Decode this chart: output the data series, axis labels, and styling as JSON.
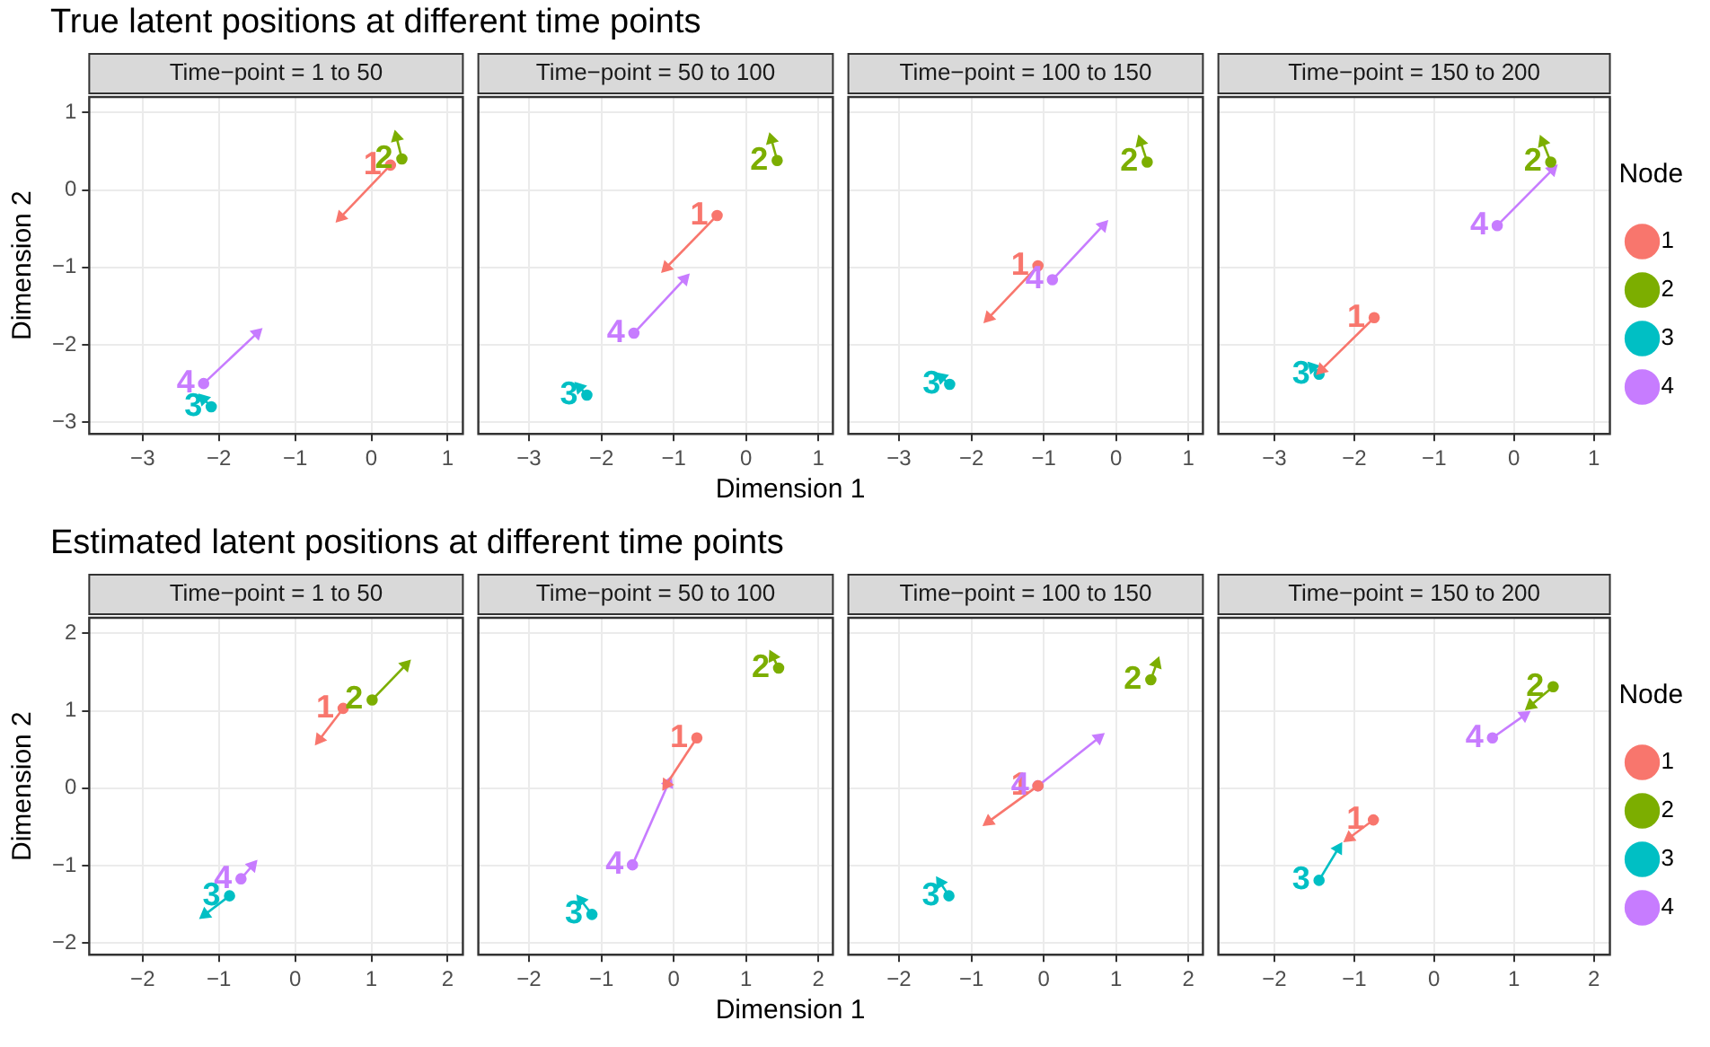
{
  "chart_data": [
    {
      "type": "line",
      "title": "True latent positions at different time points",
      "subtitle": "Time−point = 1 to 50",
      "ylabel": "Dimension 2",
      "xlim": [
        -3.7,
        1.2
      ],
      "ylim": [
        -3.15,
        1.2
      ],
      "xticks": [
        -3,
        -2,
        -1,
        0,
        1
      ],
      "yticks": [
        -3,
        -2,
        -1,
        0,
        1
      ],
      "grid": true,
      "marker": "circle",
      "series": [
        {
          "name": "1",
          "color": "#f8766d",
          "x": [
            0.25,
            -0.4
          ],
          "values": [
            0.32,
            -0.35
          ]
        },
        {
          "name": "2",
          "color": "#7cae00",
          "x": [
            0.4,
            0.33
          ],
          "values": [
            0.4,
            0.68
          ]
        },
        {
          "name": "3",
          "color": "#00bfc4",
          "x": [
            -2.1,
            -2.2
          ],
          "values": [
            -2.8,
            -2.7
          ]
        },
        {
          "name": "4",
          "color": "#c77cff",
          "x": [
            -2.2,
            -1.5
          ],
          "values": [
            -2.5,
            -1.85
          ]
        }
      ]
    },
    {
      "type": "line",
      "subtitle": "Time−point = 50 to 100",
      "xlabel": "Dimension 1",
      "xlim": [
        -3.7,
        1.2
      ],
      "ylim": [
        -3.15,
        1.2
      ],
      "xticks": [
        -3,
        -2,
        -1,
        0,
        1
      ],
      "yticks": [
        -3,
        -2,
        -1,
        0,
        1
      ],
      "tick_labels": "x",
      "grid": true,
      "marker": "circle",
      "series": [
        {
          "name": "1",
          "color": "#f8766d",
          "x": [
            -0.4,
            -1.1
          ],
          "values": [
            -0.33,
            -1.0
          ]
        },
        {
          "name": "2",
          "color": "#7cae00",
          "x": [
            0.43,
            0.35
          ],
          "values": [
            0.38,
            0.65
          ]
        },
        {
          "name": "3",
          "color": "#00bfc4",
          "x": [
            -2.2,
            -2.3
          ],
          "values": [
            -2.65,
            -2.55
          ]
        },
        {
          "name": "4",
          "color": "#c77cff",
          "x": [
            -1.55,
            -0.85
          ],
          "values": [
            -1.85,
            -1.15
          ]
        }
      ]
    },
    {
      "type": "line",
      "subtitle": "Time−point = 100 to 150",
      "xlim": [
        -3.7,
        1.2
      ],
      "ylim": [
        -3.15,
        1.2
      ],
      "xticks": [
        -3,
        -2,
        -1,
        0,
        1
      ],
      "yticks": [
        -3,
        -2,
        -1,
        0,
        1
      ],
      "tick_labels": "x",
      "grid": true,
      "marker": "circle",
      "series": [
        {
          "name": "1",
          "color": "#f8766d",
          "x": [
            -1.08,
            -1.76
          ],
          "values": [
            -0.98,
            -1.65
          ]
        },
        {
          "name": "2",
          "color": "#7cae00",
          "x": [
            0.43,
            0.34
          ],
          "values": [
            0.36,
            0.62
          ]
        },
        {
          "name": "3",
          "color": "#00bfc4",
          "x": [
            -2.3,
            -2.41
          ],
          "values": [
            -2.51,
            -2.42
          ]
        },
        {
          "name": "4",
          "color": "#c77cff",
          "x": [
            -0.88,
            -0.18
          ],
          "values": [
            -1.16,
            -0.46
          ]
        }
      ]
    },
    {
      "type": "line",
      "subtitle": "Time−point = 150 to 200",
      "xlim": [
        -3.7,
        1.2
      ],
      "ylim": [
        -3.15,
        1.2
      ],
      "xticks": [
        -3,
        -2,
        -1,
        0,
        1
      ],
      "yticks": [
        -3,
        -2,
        -1,
        0,
        1
      ],
      "tick_labels": "x",
      "grid": true,
      "marker": "circle",
      "legend": "right",
      "legend_title": "Node",
      "series": [
        {
          "name": "1",
          "color": "#f8766d",
          "x": [
            -1.75,
            -2.41
          ],
          "values": [
            -1.65,
            -2.32
          ]
        },
        {
          "name": "2",
          "color": "#7cae00",
          "x": [
            0.46,
            0.36
          ],
          "values": [
            0.36,
            0.62
          ]
        },
        {
          "name": "3",
          "color": "#00bfc4",
          "x": [
            -2.44,
            -2.52
          ],
          "values": [
            -2.38,
            -2.29
          ]
        },
        {
          "name": "4",
          "color": "#c77cff",
          "x": [
            -0.21,
            0.48
          ],
          "values": [
            -0.46,
            0.26
          ]
        }
      ]
    },
    {
      "type": "line",
      "title": "Estimated latent positions at different time points",
      "subtitle": "Time−point = 1 to 50",
      "ylabel": "Dimension 2",
      "xlim": [
        -2.7,
        2.2
      ],
      "ylim": [
        -2.15,
        2.2
      ],
      "xticks": [
        -2,
        -1,
        0,
        1,
        2
      ],
      "yticks": [
        -2,
        -1,
        0,
        1,
        2
      ],
      "grid": true,
      "marker": "circle",
      "series": [
        {
          "name": "1",
          "color": "#f8766d",
          "x": [
            0.63,
            0.32
          ],
          "values": [
            1.03,
            0.63
          ]
        },
        {
          "name": "2",
          "color": "#7cae00",
          "x": [
            1.01,
            1.45
          ],
          "values": [
            1.14,
            1.59
          ]
        },
        {
          "name": "3",
          "color": "#00bfc4",
          "x": [
            -0.86,
            -1.18
          ],
          "values": [
            -1.39,
            -1.63
          ]
        },
        {
          "name": "4",
          "color": "#c77cff",
          "x": [
            -0.71,
            -0.56
          ],
          "values": [
            -1.17,
            -1.0
          ]
        }
      ]
    },
    {
      "type": "line",
      "subtitle": "Time−point = 50 to 100",
      "xlabel": "Dimension 1",
      "xlim": [
        -2.7,
        2.2
      ],
      "ylim": [
        -2.15,
        2.2
      ],
      "xticks": [
        -2,
        -1,
        0,
        1,
        2
      ],
      "yticks": [
        -2,
        -1,
        0,
        1,
        2
      ],
      "tick_labels": "x",
      "grid": true,
      "marker": "circle",
      "series": [
        {
          "name": "1",
          "color": "#f8766d",
          "x": [
            0.32,
            -0.1
          ],
          "values": [
            0.65,
            0.05
          ]
        },
        {
          "name": "2",
          "color": "#7cae00",
          "x": [
            1.45,
            1.37
          ],
          "values": [
            1.55,
            1.7
          ]
        },
        {
          "name": "3",
          "color": "#00bfc4",
          "x": [
            -1.13,
            -1.28
          ],
          "values": [
            -1.63,
            -1.45
          ]
        },
        {
          "name": "4",
          "color": "#c77cff",
          "x": [
            -0.57,
            -0.07
          ],
          "values": [
            -0.99,
            0.07
          ]
        }
      ]
    },
    {
      "type": "line",
      "subtitle": "Time−point = 100 to 150",
      "xlim": [
        -2.7,
        2.2
      ],
      "ylim": [
        -2.15,
        2.2
      ],
      "xticks": [
        -2,
        -1,
        0,
        1,
        2
      ],
      "yticks": [
        -2,
        -1,
        0,
        1,
        2
      ],
      "tick_labels": "x",
      "grid": true,
      "marker": "circle",
      "series": [
        {
          "name": "1",
          "color": "#f8766d",
          "x": [
            -0.08,
            -0.76
          ],
          "values": [
            0.03,
            -0.43
          ]
        },
        {
          "name": "2",
          "color": "#7cae00",
          "x": [
            1.48,
            1.56
          ],
          "values": [
            1.4,
            1.61
          ]
        },
        {
          "name": "3",
          "color": "#00bfc4",
          "x": [
            -1.31,
            -1.43
          ],
          "values": [
            -1.39,
            -1.22
          ]
        },
        {
          "name": "4",
          "color": "#c77cff",
          "x": [
            -0.08,
            0.76
          ],
          "values": [
            0.03,
            0.65
          ]
        }
      ]
    },
    {
      "type": "line",
      "subtitle": "Time−point = 150 to 200",
      "xlim": [
        -2.7,
        2.2
      ],
      "ylim": [
        -2.15,
        2.2
      ],
      "xticks": [
        -2,
        -1,
        0,
        1,
        2
      ],
      "yticks": [
        -2,
        -1,
        0,
        1,
        2
      ],
      "tick_labels": "x",
      "grid": true,
      "marker": "circle",
      "legend": "right",
      "legend_title": "Node",
      "series": [
        {
          "name": "1",
          "color": "#f8766d",
          "x": [
            -0.76,
            -1.06
          ],
          "values": [
            -0.41,
            -0.64
          ]
        },
        {
          "name": "2",
          "color": "#7cae00",
          "x": [
            1.49,
            1.21
          ],
          "values": [
            1.31,
            1.07
          ]
        },
        {
          "name": "3",
          "color": "#00bfc4",
          "x": [
            -1.44,
            -1.2
          ],
          "values": [
            -1.19,
            -0.78
          ]
        },
        {
          "name": "4",
          "color": "#c77cff",
          "x": [
            0.73,
            1.13
          ],
          "values": [
            0.65,
            0.94
          ]
        }
      ]
    }
  ]
}
